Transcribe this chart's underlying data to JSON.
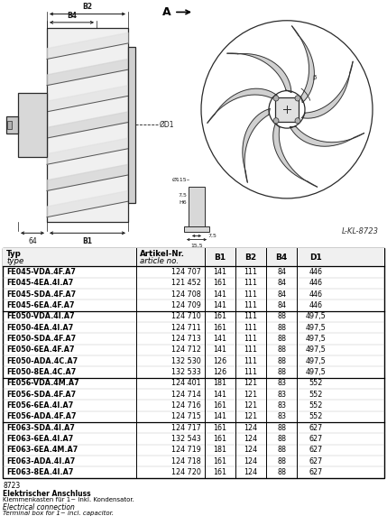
{
  "table_rows": [
    [
      "FE045-VDA.4F.A7",
      "124 707",
      "141",
      "111",
      "84",
      "446"
    ],
    [
      "FE045-4EA.4I.A7",
      "121 452",
      "161",
      "111",
      "84",
      "446"
    ],
    [
      "FE045-SDA.4F.A7",
      "124 708",
      "141",
      "111",
      "84",
      "446"
    ],
    [
      "FE045-6EA.4F.A7",
      "124 709",
      "141",
      "111",
      "84",
      "446"
    ],
    [
      "FE050-VDA.4I.A7",
      "124 710",
      "161",
      "111",
      "88",
      "497,5"
    ],
    [
      "FE050-4EA.4I.A7",
      "124 711",
      "161",
      "111",
      "88",
      "497,5"
    ],
    [
      "FE050-SDA.4F.A7",
      "124 713",
      "141",
      "111",
      "88",
      "497,5"
    ],
    [
      "FE050-6EA.4F.A7",
      "124 712",
      "141",
      "111",
      "88",
      "497,5"
    ],
    [
      "FE050-ADA.4C.A7",
      "132 530",
      "126",
      "111",
      "88",
      "497,5"
    ],
    [
      "FE050-8EA.4C.A7",
      "132 533",
      "126",
      "111",
      "88",
      "497,5"
    ],
    [
      "FE056-VDA.4M.A7",
      "124 401",
      "181",
      "121",
      "83",
      "552"
    ],
    [
      "FE056-SDA.4F.A7",
      "124 714",
      "141",
      "121",
      "83",
      "552"
    ],
    [
      "FE056-6EA.4I.A7",
      "124 716",
      "161",
      "121",
      "83",
      "552"
    ],
    [
      "FE056-ADA.4F.A7",
      "124 715",
      "141",
      "121",
      "83",
      "552"
    ],
    [
      "FE063-SDA.4I.A7",
      "124 717",
      "161",
      "124",
      "88",
      "627"
    ],
    [
      "FE063-6EA.4I.A7",
      "132 543",
      "161",
      "124",
      "88",
      "627"
    ],
    [
      "FE063-6EA.4M.A7",
      "124 719",
      "181",
      "124",
      "88",
      "627"
    ],
    [
      "FE063-ADA.4I.A7",
      "124 718",
      "161",
      "124",
      "88",
      "627"
    ],
    [
      "FE063-8EA.4I.A7",
      "124 720",
      "161",
      "124",
      "88",
      "627"
    ]
  ],
  "group_separators": [
    4,
    10,
    14
  ],
  "footer_text_1": "8723",
  "footer_text_2": "Elektrischer Anschluss",
  "footer_text_3": "Klemmenkasten für 1~ inkl. Kondensator.",
  "footer_text_4": "Electrical connection",
  "footer_text_5": "Terminal box for 1~ incl. capacitor.",
  "label_L_KL": "L-KL-8723",
  "bg_color": "#ffffff"
}
